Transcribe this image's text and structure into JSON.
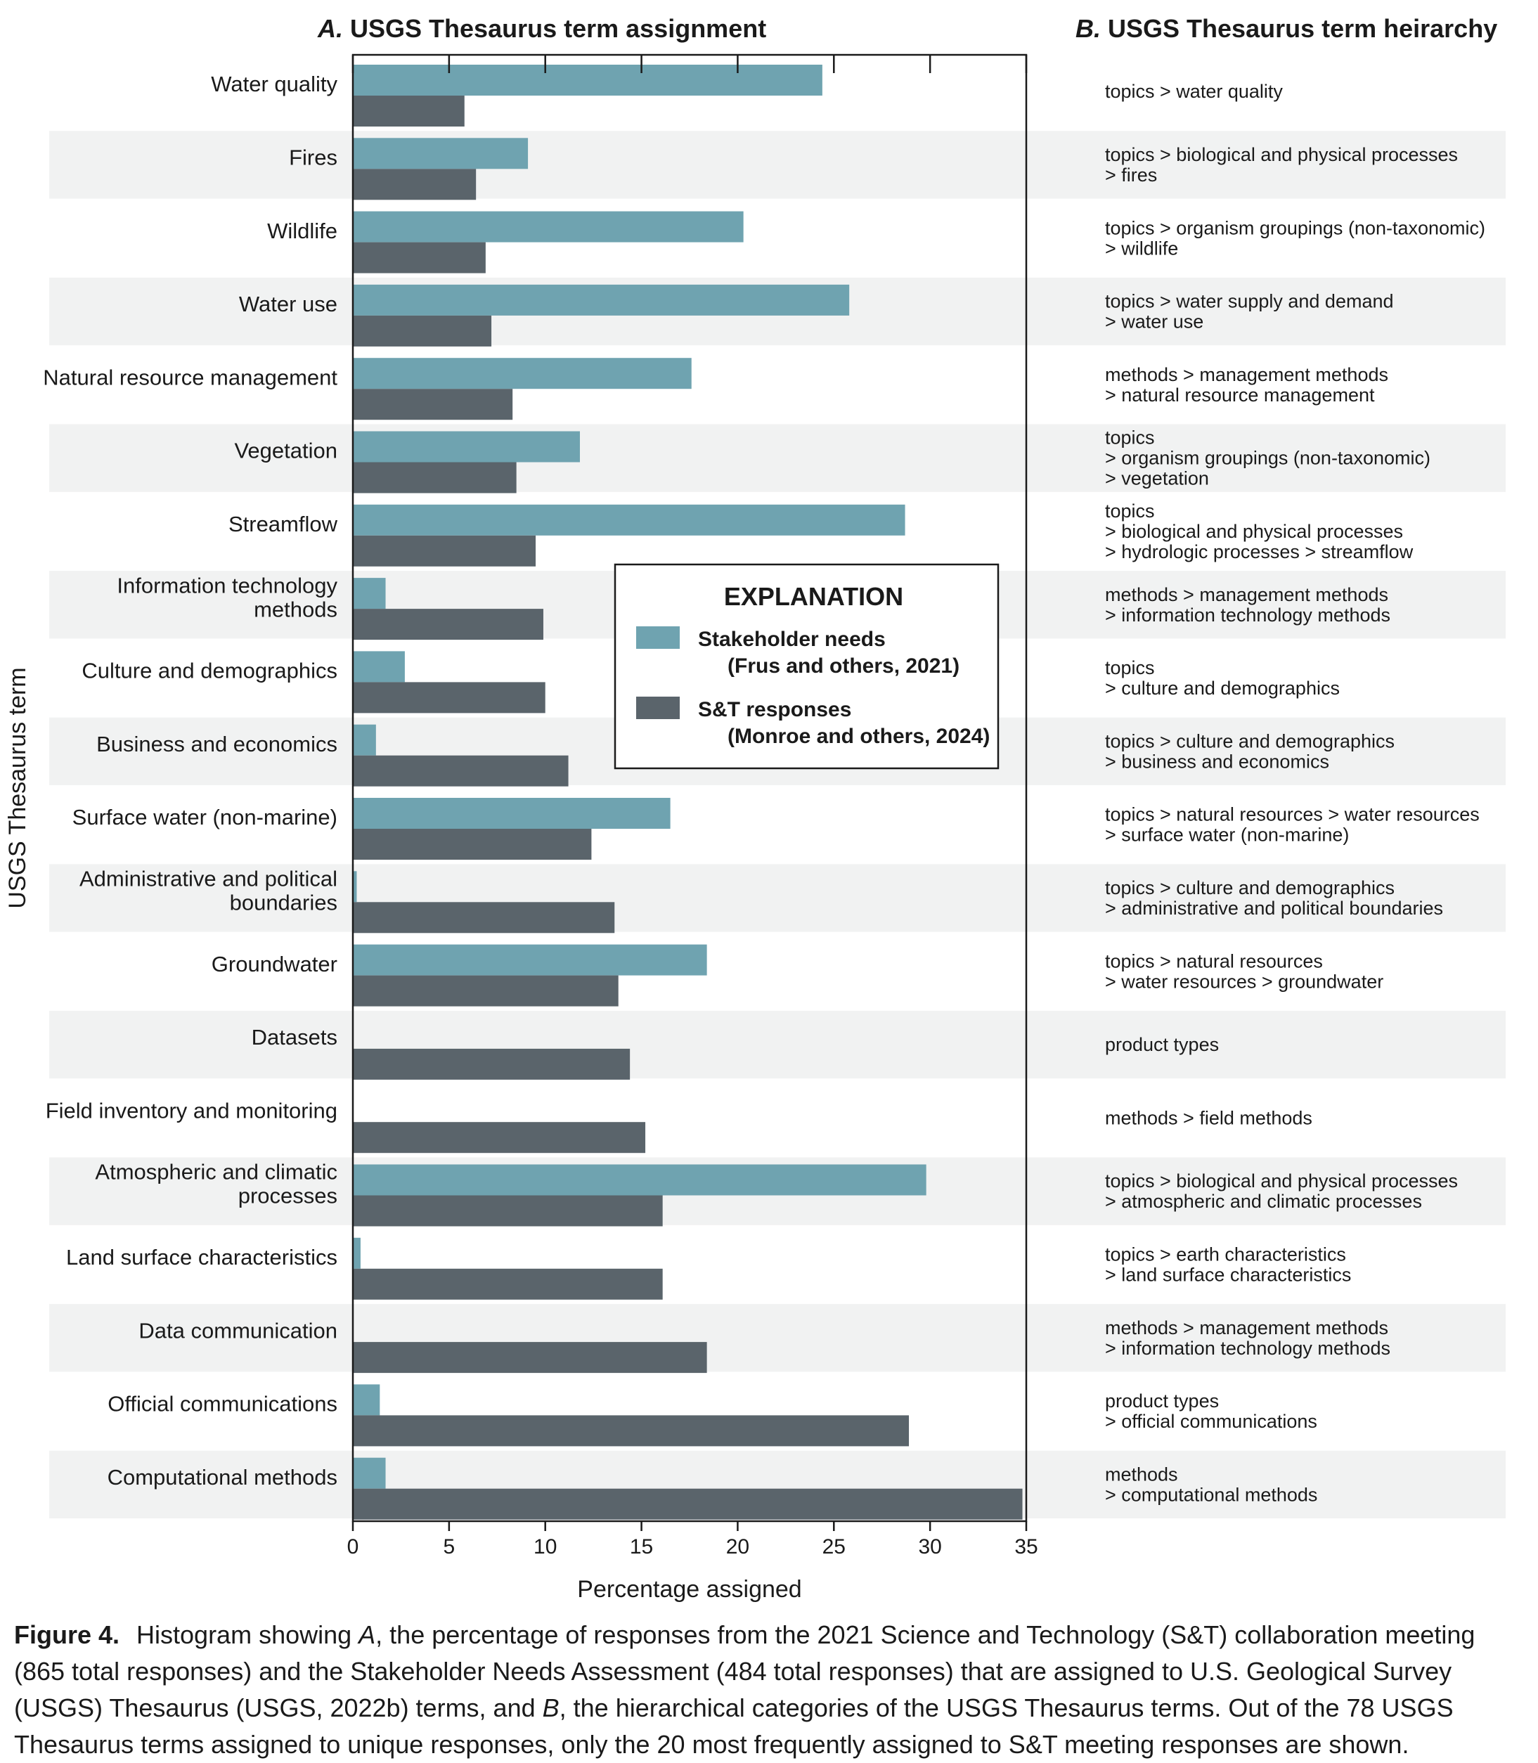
{
  "panel_a": {
    "letter": "A.",
    "title": "USGS Thesaurus term assignment"
  },
  "panel_b": {
    "letter": "B.",
    "title": "USGS Thesaurus term heirarchy"
  },
  "colors": {
    "stakeholder": "#6fa3b0",
    "st": "#5a646b",
    "band": "#f1f2f2",
    "frame": "#1a1a1a"
  },
  "chart_data": {
    "type": "bar",
    "orientation": "horizontal",
    "xlabel": "Percentage assigned",
    "ylabel": "USGS Thesaurus term",
    "xlim": [
      0,
      35
    ],
    "xticks": [
      0,
      5,
      10,
      15,
      20,
      25,
      30,
      35
    ],
    "legend_title": "EXPLANATION",
    "legend_position": "center-right",
    "categories": [
      [
        "Water quality"
      ],
      [
        "Fires"
      ],
      [
        "Wildlife"
      ],
      [
        "Water use"
      ],
      [
        "Natural resource management"
      ],
      [
        "Vegetation"
      ],
      [
        "Streamflow"
      ],
      [
        "Information technology",
        "methods"
      ],
      [
        "Culture and demographics"
      ],
      [
        "Business and economics"
      ],
      [
        "Surface water (non-marine)"
      ],
      [
        "Administrative and political",
        "boundaries"
      ],
      [
        "Groundwater"
      ],
      [
        "Datasets"
      ],
      [
        "Field inventory and monitoring"
      ],
      [
        "Atmospheric and climatic",
        "processes"
      ],
      [
        "Land surface characteristics"
      ],
      [
        "Data communication"
      ],
      [
        "Official communications"
      ],
      [
        "Computational methods"
      ]
    ],
    "series": [
      {
        "name": [
          "Stakeholder needs",
          "(Frus and others, 2021)"
        ],
        "color": "#6fa3b0",
        "values": [
          24.4,
          9.1,
          20.3,
          25.8,
          17.6,
          11.8,
          28.7,
          1.7,
          2.7,
          1.2,
          16.5,
          0.2,
          18.4,
          0,
          0,
          29.8,
          0.4,
          0,
          1.4,
          1.7
        ]
      },
      {
        "name": [
          "S&T responses",
          "(Monroe and others, 2024)"
        ],
        "color": "#5a646b",
        "values": [
          5.8,
          6.4,
          6.9,
          7.2,
          8.3,
          8.5,
          9.5,
          9.9,
          10.0,
          11.2,
          12.4,
          13.6,
          13.8,
          14.4,
          15.2,
          16.1,
          16.1,
          18.4,
          28.9,
          34.8
        ]
      }
    ],
    "hierarchy": [
      [
        "topics > water quality"
      ],
      [
        "topics  > biological and physical processes",
        "> fires"
      ],
      [
        "topics  > organism groupings (non-taxonomic)",
        "> wildlife"
      ],
      [
        "topics  > water supply and demand",
        "> water use"
      ],
      [
        "methods  > management methods",
        "> natural resource management"
      ],
      [
        "topics",
        "> organism groupings (non-taxonomic)",
        "> vegetation"
      ],
      [
        "topics",
        "> biological and physical processes",
        "> hydrologic processes > streamflow"
      ],
      [
        "methods  > management methods",
        "> information technology methods"
      ],
      [
        "topics",
        "> culture and demographics"
      ],
      [
        "topics  > culture and demographics",
        "> business and economics"
      ],
      [
        "topics  > natural resources > water resources",
        "> surface water (non-marine)"
      ],
      [
        "topics  > culture and demographics",
        "> administrative and political boundaries"
      ],
      [
        "topics  > natural resources",
        "> water resources > groundwater"
      ],
      [
        "product types"
      ],
      [
        "methods > field methods"
      ],
      [
        "topics  > biological and physical processes",
        "> atmospheric and climatic processes"
      ],
      [
        "topics  > earth characteristics",
        "> land surface characteristics"
      ],
      [
        "methods  > management methods",
        "> information technology methods"
      ],
      [
        "product types",
        "> official communications"
      ],
      [
        "methods",
        "> computational methods"
      ]
    ]
  },
  "caption": {
    "label": "Figure 4.",
    "t1": "Histogram showing ",
    "a": "A",
    "t2": ", the percentage of responses from the 2021 Science and Technology (S&T) collaboration meeting (865 total responses) and the Stakeholder Needs Assessment (484 total responses) that are assigned to U.S. Geological Survey (USGS) Thesaurus (USGS, 2022b) terms, and ",
    "b": "B",
    "t3": ", the hierarchical categories of the USGS Thesaurus terms. Out of the 78 USGS Thesaurus terms assigned to unique responses, only the 20 most frequently assigned to S&T meeting responses are shown."
  }
}
